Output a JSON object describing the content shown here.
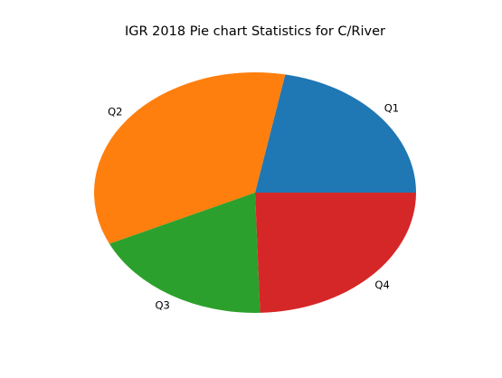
{
  "chart_data": {
    "type": "pie",
    "title": "IGR 2018 Pie chart Statistics for C/River",
    "labels": [
      "Q1",
      "Q2",
      "Q3",
      "Q4"
    ],
    "values": [
      22.0,
      35.0,
      18.5,
      24.5
    ],
    "colors": [
      "#1f77b4",
      "#ff7f0e",
      "#2ca02c",
      "#d62728"
    ],
    "start_angle_deg": 0,
    "direction": "counterclockwise",
    "legend": "none"
  }
}
